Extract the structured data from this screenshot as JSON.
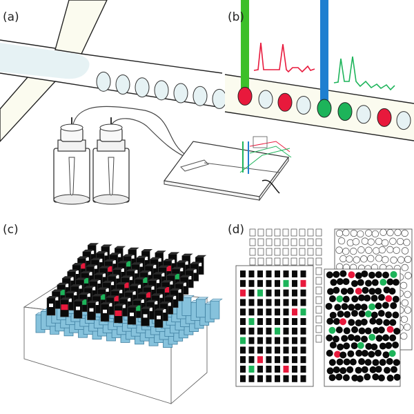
{
  "panels": [
    {
      "id": "a",
      "label": "(a)"
    },
    {
      "id": "b",
      "label": "(b)"
    },
    {
      "id": "c",
      "label": "(c)"
    },
    {
      "id": "d",
      "label": "(d)"
    }
  ],
  "colors": {
    "droplet_red": "#e8193c",
    "droplet_green": "#1db45a",
    "laser_green": "#3cbf2a",
    "laser_blue": "#1f7fd0",
    "channel_fill": "#fbfbef",
    "droplet_fill": "#e6f2f4",
    "well_blue": "#86c2dc",
    "block_black": "#0a0a0a"
  },
  "panel_b": {
    "droplet_sequence": [
      "red",
      "red",
      "green",
      "green",
      "red"
    ]
  },
  "panel_c": {
    "grid_size": [
      9,
      9
    ],
    "colored_cells": [
      {
        "row": 0,
        "col": 1,
        "color": "red"
      },
      {
        "row": 0,
        "col": 5,
        "color": "red"
      },
      {
        "row": 1,
        "col": 2,
        "color": "green"
      },
      {
        "row": 1,
        "col": 6,
        "color": "green"
      },
      {
        "row": 2,
        "col": 0,
        "color": "green"
      },
      {
        "row": 2,
        "col": 3,
        "color": "green"
      },
      {
        "row": 2,
        "col": 4,
        "color": "red"
      },
      {
        "row": 3,
        "col": 6,
        "color": "red"
      },
      {
        "row": 4,
        "col": 1,
        "color": "green"
      },
      {
        "row": 4,
        "col": 4,
        "color": "red"
      },
      {
        "row": 4,
        "col": 7,
        "color": "red"
      },
      {
        "row": 5,
        "col": 5,
        "color": "green"
      },
      {
        "row": 6,
        "col": 0,
        "color": "red"
      },
      {
        "row": 6,
        "col": 2,
        "color": "red"
      },
      {
        "row": 6,
        "col": 7,
        "color": "green"
      },
      {
        "row": 7,
        "col": 3,
        "color": "green"
      },
      {
        "row": 7,
        "col": 6,
        "color": "red"
      }
    ]
  },
  "panel_d": {
    "grid_rows": 12,
    "grid_cols": 8,
    "colored_cells": [
      {
        "row": 1,
        "col": 5,
        "color": "green"
      },
      {
        "row": 1,
        "col": 7,
        "color": "red"
      },
      {
        "row": 2,
        "col": 0,
        "color": "red"
      },
      {
        "row": 2,
        "col": 2,
        "color": "green"
      },
      {
        "row": 4,
        "col": 6,
        "color": "red"
      },
      {
        "row": 4,
        "col": 7,
        "color": "green"
      },
      {
        "row": 5,
        "col": 1,
        "color": "green"
      },
      {
        "row": 6,
        "col": 4,
        "color": "green"
      },
      {
        "row": 7,
        "col": 0,
        "color": "green"
      },
      {
        "row": 9,
        "col": 2,
        "color": "red"
      },
      {
        "row": 10,
        "col": 1,
        "color": "green"
      },
      {
        "row": 10,
        "col": 5,
        "color": "red"
      }
    ]
  }
}
